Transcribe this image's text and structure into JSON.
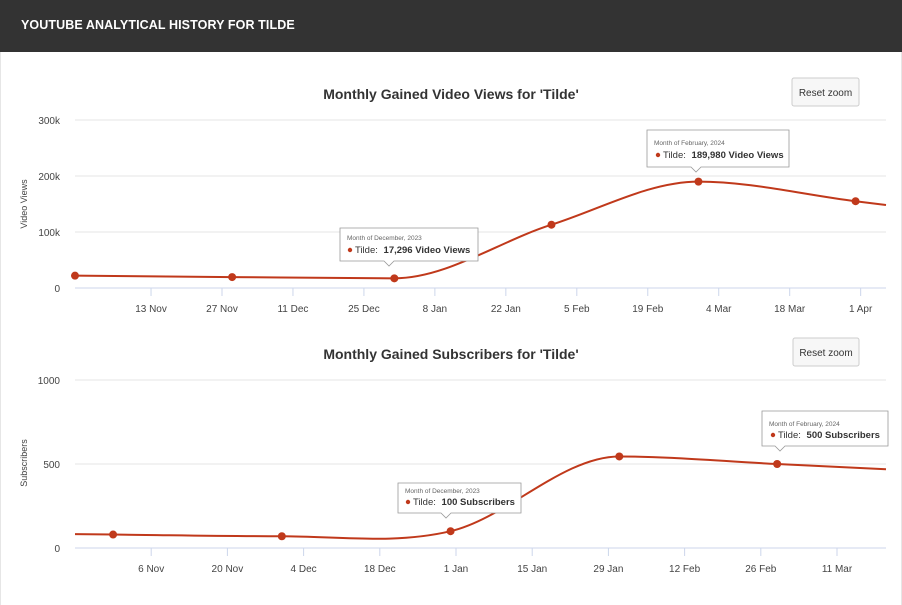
{
  "header": {
    "title": "YOUTUBE ANALYTICAL HISTORY FOR TILDE"
  },
  "reset_label": "Reset zoom",
  "colors": {
    "series": "#c0391b",
    "header_bg": "#333333"
  },
  "chart_data": [
    {
      "type": "line",
      "title": "Monthly Gained Video Views for 'Tilde'",
      "ylabel": "Video Views",
      "ylim": [
        0,
        300000
      ],
      "yticks": [
        "0",
        "100k",
        "200k",
        "300k"
      ],
      "xticks": [
        "13 Nov",
        "27 Nov",
        "11 Dec",
        "25 Dec",
        "8 Jan",
        "22 Jan",
        "5 Feb",
        "19 Feb",
        "4 Mar",
        "18 Mar",
        "1 Apr"
      ],
      "series": [
        {
          "name": "Tilde",
          "x": [
            "2023-10-29",
            "2023-11-29",
            "2023-12-31",
            "2024-01-31",
            "2024-02-29",
            "2024-03-31"
          ],
          "y": [
            22000,
            19500,
            17296,
            113000,
            189980,
            155000
          ]
        }
      ],
      "tooltip": {
        "date": "Month of February, 2024",
        "series": "Tilde:",
        "value": "189,980 Video Views"
      },
      "tooltip2": {
        "date": "Month of December, 2023",
        "series": "Tilde:",
        "value": "17,296 Video Views"
      }
    },
    {
      "type": "line",
      "title": "Monthly Gained Subscribers for 'Tilde'",
      "ylabel": "Subscribers",
      "ylim": [
        0,
        1000
      ],
      "yticks": [
        "0",
        "500",
        "1000"
      ],
      "xticks": [
        "6 Nov",
        "20 Nov",
        "4 Dec",
        "18 Dec",
        "1 Jan",
        "15 Jan",
        "29 Jan",
        "12 Feb",
        "26 Feb",
        "11 Mar"
      ],
      "series": [
        {
          "name": "Tilde",
          "x": [
            "2023-10-30",
            "2023-11-30",
            "2023-12-31",
            "2024-01-31",
            "2024-02-29"
          ],
          "y": [
            80,
            70,
            100,
            545,
            500
          ]
        }
      ],
      "tooltip": {
        "date": "Month of February, 2024",
        "series": "Tilde:",
        "value": "500 Subscribers"
      },
      "tooltip2": {
        "date": "Month of December, 2023",
        "series": "Tilde:",
        "value": "100 Subscribers"
      }
    }
  ]
}
